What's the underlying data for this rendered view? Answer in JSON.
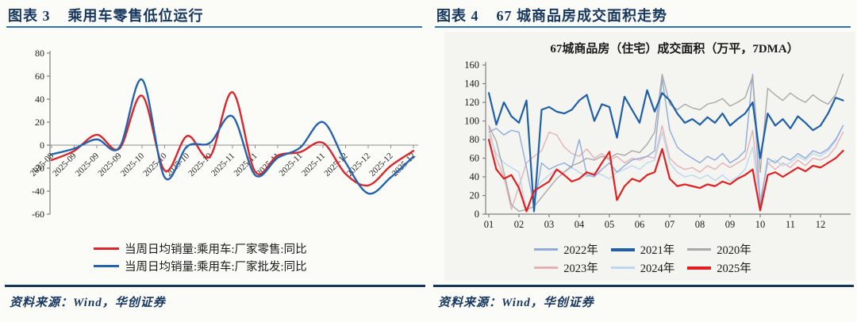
{
  "left_panel": {
    "figure_label": "图表 3",
    "title": "乘用车零售低位运行",
    "source": "资料来源：Wind，华创证券"
  },
  "right_panel": {
    "figure_label": "图表 4",
    "title": "67 城商品房成交面积走势",
    "source": "资料来源：Wind，华创证券"
  },
  "colors": {
    "title_navy": "#17375e",
    "header_rule_blue": "#2e74b5",
    "axis_gray": "#7f7f7f",
    "tick_text": "#1a1a1a"
  },
  "chart_data": [
    {
      "type": "line",
      "title": "",
      "xlabel": "",
      "ylabel": "",
      "ylim": [
        -60,
        80
      ],
      "ytick_step": 20,
      "grid": false,
      "legend_position": "bottom-left",
      "x_labels": [
        "2025-08",
        "2025-09",
        "2025-09",
        "2025-09",
        "2025-10",
        "2025-10",
        "2025-10",
        "2025-10",
        "2025-11",
        "2025-11",
        "2025-11",
        "2025-11",
        "2025-11",
        "2025-12",
        "2025-12",
        "2025-12",
        "2025-12"
      ],
      "series": [
        {
          "name": "当周日均销量:乘用车:厂家零售:同比",
          "color": "#d9262c",
          "width": 2.4,
          "values": [
            -13,
            -5,
            9,
            -3,
            43,
            -22,
            8,
            -10,
            46,
            -23,
            -9,
            -6,
            2,
            -25,
            -35,
            -18,
            -5
          ]
        },
        {
          "name": "当周日均销量:乘用车:厂家批发:同比",
          "color": "#2563ad",
          "width": 2.4,
          "values": [
            -8,
            -3,
            5,
            -2,
            57,
            -28,
            -1,
            2,
            25,
            -26,
            -11,
            -2,
            20,
            -15,
            -42,
            -28,
            -10
          ]
        }
      ]
    },
    {
      "type": "line",
      "title": "67城商品房（住宅）成交面积（万平，7DMA）",
      "xlabel": "",
      "ylabel": "",
      "ylim": [
        0,
        160
      ],
      "ytick_step": 20,
      "xlim": [
        1,
        13
      ],
      "grid": false,
      "legend_position": "bottom-center",
      "x_tick_labels": [
        "01",
        "02",
        "03",
        "04",
        "05",
        "06",
        "07",
        "08",
        "09",
        "10",
        "11",
        "12"
      ],
      "x_tick_values": [
        1,
        2,
        3,
        4,
        5,
        6,
        7,
        8,
        9,
        10,
        11,
        12
      ],
      "x": [
        1,
        1.25,
        1.5,
        1.75,
        2,
        2.25,
        2.5,
        2.75,
        3,
        3.25,
        3.5,
        3.75,
        4,
        4.25,
        4.5,
        4.75,
        5,
        5.25,
        5.5,
        5.75,
        6,
        6.25,
        6.5,
        6.75,
        7,
        7.25,
        7.5,
        7.75,
        8,
        8.25,
        8.5,
        8.75,
        9,
        9.25,
        9.5,
        9.75,
        10,
        10.25,
        10.5,
        10.75,
        11,
        11.25,
        11.5,
        11.75,
        12,
        12.25,
        12.5,
        12.75
      ],
      "draw_order": [
        3,
        4,
        0,
        2,
        1,
        5
      ],
      "series": [
        {
          "name": "2022年",
          "color": "#8faadc",
          "width": 1.4,
          "values": [
            88,
            92,
            85,
            90,
            88,
            50,
            8,
            55,
            48,
            52,
            55,
            50,
            80,
            42,
            40,
            48,
            55,
            45,
            52,
            58,
            60,
            62,
            68,
            145,
            90,
            72,
            65,
            60,
            55,
            62,
            58,
            65,
            55,
            60,
            68,
            150,
            8,
            60,
            55,
            62,
            58,
            65,
            60,
            68,
            65,
            70,
            80,
            95
          ]
        },
        {
          "name": "2021年",
          "color": "#1f5fa8",
          "width": 2.2,
          "values": [
            130,
            96,
            120,
            105,
            98,
            122,
            3,
            112,
            115,
            110,
            108,
            112,
            122,
            128,
            100,
            118,
            115,
            82,
            126,
            112,
            98,
            133,
            110,
            130,
            122,
            108,
            98,
            102,
            96,
            104,
            98,
            108,
            95,
            102,
            108,
            120,
            60,
            108,
            95,
            102,
            92,
            105,
            98,
            90,
            95,
            108,
            125,
            122
          ]
        },
        {
          "name": "2020年",
          "color": "#a8a8a8",
          "width": 1.4,
          "values": [
            95,
            78,
            45,
            10,
            3,
            5,
            8,
            18,
            28,
            38,
            45,
            52,
            55,
            60,
            58,
            62,
            60,
            65,
            63,
            68,
            66,
            75,
            88,
            150,
            118,
            112,
            118,
            114,
            112,
            118,
            120,
            124,
            116,
            120,
            125,
            148,
            45,
            135,
            128,
            122,
            130,
            124,
            120,
            128,
            122,
            118,
            128,
            150
          ]
        },
        {
          "name": "2023年",
          "color": "#e4b2b5",
          "width": 1.4,
          "values": [
            93,
            60,
            40,
            5,
            30,
            55,
            62,
            68,
            88,
            85,
            72,
            65,
            62,
            70,
            60,
            65,
            58,
            62,
            55,
            60,
            58,
            62,
            60,
            95,
            60,
            52,
            48,
            50,
            45,
            52,
            48,
            55,
            50,
            55,
            60,
            90,
            15,
            55,
            48,
            55,
            50,
            58,
            52,
            60,
            58,
            62,
            72,
            88
          ]
        },
        {
          "name": "2024年",
          "color": "#bdd7ee",
          "width": 1.4,
          "values": [
            85,
            65,
            55,
            50,
            45,
            3,
            25,
            35,
            42,
            48,
            45,
            50,
            45,
            40,
            45,
            42,
            38,
            45,
            48,
            52,
            48,
            55,
            58,
            88,
            55,
            45,
            40,
            42,
            38,
            42,
            36,
            42,
            35,
            40,
            48,
            72,
            12,
            55,
            58,
            52,
            55,
            62,
            58,
            65,
            62,
            68,
            78,
            95
          ]
        },
        {
          "name": "2025年",
          "color": "#e02020",
          "width": 2.2,
          "values": [
            80,
            48,
            38,
            42,
            28,
            3,
            25,
            30,
            35,
            48,
            42,
            35,
            38,
            45,
            42,
            55,
            67,
            15,
            30,
            38,
            35,
            42,
            45,
            70,
            38,
            30,
            32,
            30,
            28,
            32,
            30,
            35,
            32,
            38,
            42,
            48,
            4,
            42,
            45,
            40,
            45,
            50,
            46,
            52,
            50,
            55,
            60,
            68
          ]
        }
      ]
    }
  ]
}
